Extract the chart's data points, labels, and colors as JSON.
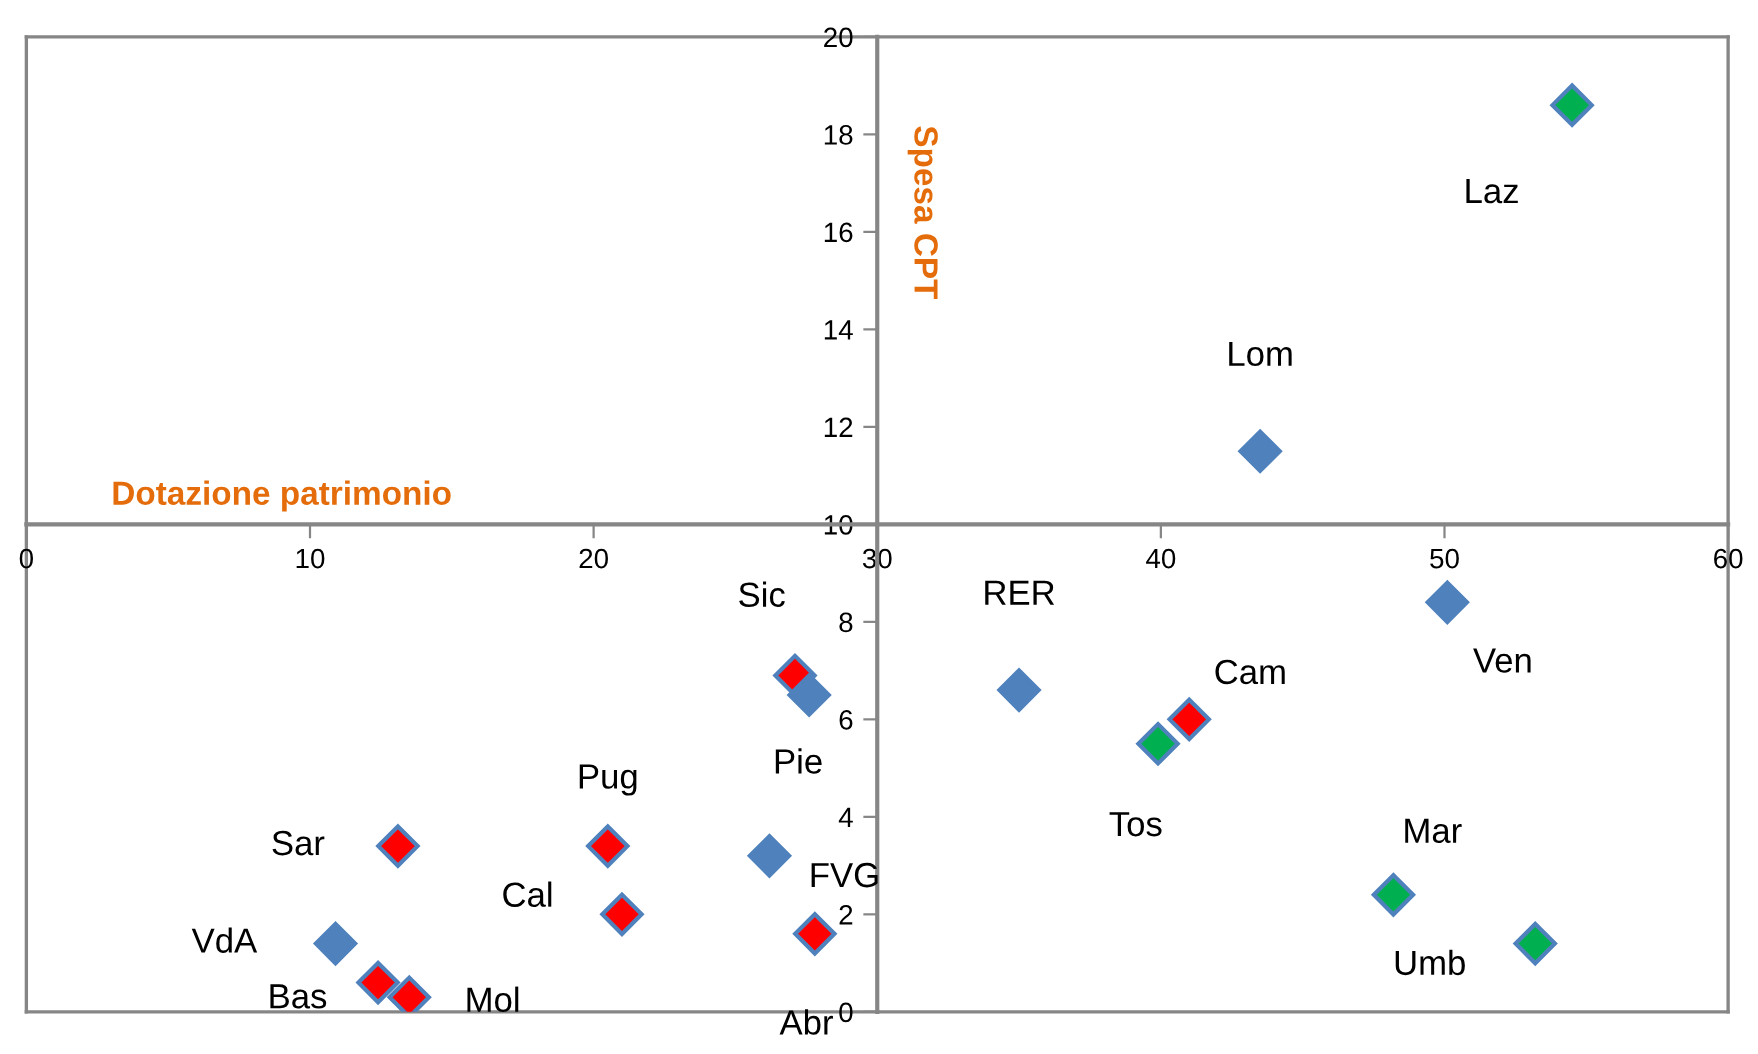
{
  "chart_data": {
    "type": "scatter",
    "xlabel": "Dotazione patrimonio",
    "ylabel": "Spesa CPT",
    "marker": "diamond",
    "grid": false,
    "xlim": [
      0,
      60
    ],
    "xticks": [
      0,
      10,
      20,
      30,
      40,
      50,
      60
    ],
    "ylim": [
      0,
      20
    ],
    "yticks": [
      0,
      2,
      4,
      6,
      8,
      10,
      12,
      14,
      16,
      18,
      20
    ],
    "series": [
      {
        "x": [
          10.9,
          12.4,
          13.5,
          13.1,
          20.5,
          21.0,
          27.1,
          27.6,
          26.2,
          27.8,
          35.0,
          39.9,
          41.0,
          50.1,
          48.2,
          53.2,
          43.5,
          54.5
        ],
        "values": [
          1.4,
          0.6,
          0.3,
          3.4,
          3.4,
          2.0,
          6.9,
          6.5,
          3.2,
          1.6,
          6.6,
          5.5,
          6.0,
          8.4,
          2.4,
          1.4,
          11.5,
          18.6
        ],
        "colors": [
          "#4f81bd",
          "#ff0000",
          "#ff0000",
          "#ff0000",
          "#ff0000",
          "#ff0000",
          "#ff0000",
          "#4f81bd",
          "#4f81bd",
          "#ff0000",
          "#4f81bd",
          "#00b050",
          "#ff0000",
          "#4f81bd",
          "#00b050",
          "#00b050",
          "#4f81bd",
          "#00b050"
        ]
      }
    ],
    "annotations": [
      {
        "text": "VdA",
        "x": 10.9,
        "y": 1.4
      },
      {
        "text": "Bas",
        "x": 12.4,
        "y": 0.6
      },
      {
        "text": "Mol",
        "x": 13.5,
        "y": 0.3
      },
      {
        "text": "Sar",
        "x": 13.1,
        "y": 3.4
      },
      {
        "text": "Pug",
        "x": 20.5,
        "y": 3.4
      },
      {
        "text": "Cal",
        "x": 21.0,
        "y": 2.0
      },
      {
        "text": "Sic",
        "x": 27.1,
        "y": 6.9
      },
      {
        "text": "Pie",
        "x": 27.6,
        "y": 6.5
      },
      {
        "text": "FVG",
        "x": 26.2,
        "y": 3.2
      },
      {
        "text": "Abr",
        "x": 27.8,
        "y": 1.6
      },
      {
        "text": "RER",
        "x": 35.0,
        "y": 6.6
      },
      {
        "text": "Tos",
        "x": 39.9,
        "y": 5.5
      },
      {
        "text": "Cam",
        "x": 41.0,
        "y": 6.0
      },
      {
        "text": "Ven",
        "x": 50.1,
        "y": 8.4
      },
      {
        "text": "Mar",
        "x": 48.2,
        "y": 2.4
      },
      {
        "text": "Umb",
        "x": 53.2,
        "y": 1.4
      },
      {
        "text": "Lom",
        "x": 43.5,
        "y": 11.5
      },
      {
        "text": "Laz",
        "x": 54.5,
        "y": 18.6
      }
    ]
  }
}
